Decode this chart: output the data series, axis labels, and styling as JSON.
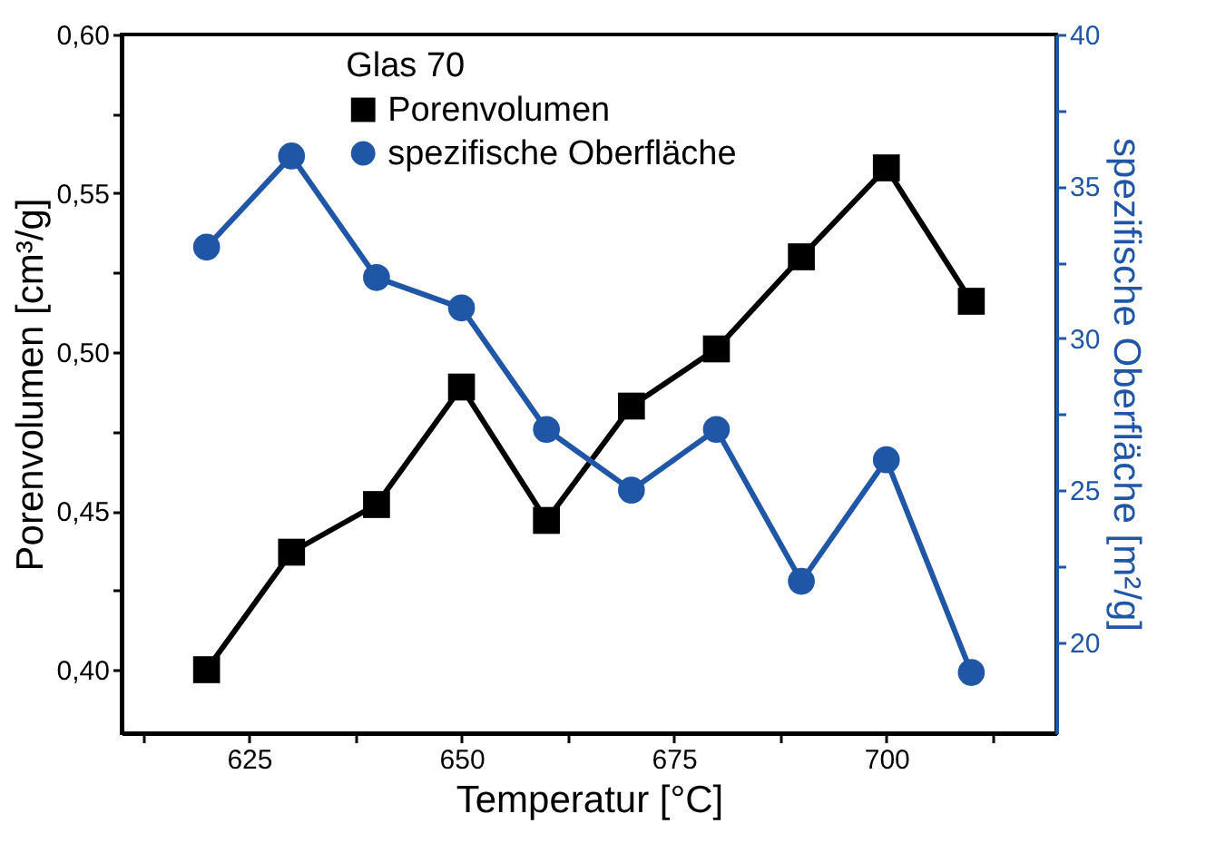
{
  "chart_data": {
    "type": "line",
    "xlabel": "Temperatur [°C]",
    "ylabel": "Porenvolumen [cm³/g]",
    "y2label": "spezifische Oberfläche [m²/g]",
    "legend_title": "Glas 70",
    "legend": "top",
    "x": [
      620,
      630,
      640,
      650,
      660,
      670,
      680,
      690,
      700,
      710
    ],
    "series": [
      {
        "name": "Porenvolumen",
        "color": "#000000",
        "marker": "square",
        "values": [
          0.4,
          0.437,
          0.452,
          0.489,
          0.447,
          0.483,
          0.501,
          0.53,
          0.558,
          0.516
        ]
      },
      {
        "name": "spezifische Oberfläche",
        "color": "#1f56a6",
        "marker": "circle",
        "axis": "y2",
        "values": [
          33,
          36,
          32,
          31,
          27,
          25,
          27,
          22,
          26,
          19
        ]
      }
    ],
    "xlim": [
      610,
      720
    ],
    "xticks": [
      {
        "value": 612.5,
        "label": null
      },
      625,
      {
        "value": 637.5,
        "label": null
      },
      650,
      {
        "value": 662.5,
        "label": null
      },
      675,
      {
        "value": 687.5,
        "label": null
      },
      700,
      {
        "value": 712.5,
        "label": null
      }
    ],
    "ylim": [
      0.38,
      0.6
    ],
    "yticks": [
      {
        "value": 0.4,
        "label": "0,40"
      },
      {
        "value": 0.425,
        "label": null
      },
      {
        "value": 0.45,
        "label": "0,45"
      },
      {
        "value": 0.475,
        "label": null
      },
      {
        "value": 0.5,
        "label": "0,50"
      },
      {
        "value": 0.525,
        "label": null
      },
      {
        "value": 0.55,
        "label": "0,55"
      },
      {
        "value": 0.575,
        "label": null
      },
      {
        "value": 0.6,
        "label": "0,60"
      }
    ],
    "y2lim": [
      17,
      40
    ],
    "y2ticks": [
      20,
      {
        "value": 22.5,
        "label": null
      },
      25,
      {
        "value": 27.5,
        "label": null
      },
      30,
      {
        "value": 32.5,
        "label": null
      },
      35,
      {
        "value": 37.5,
        "label": null
      },
      40
    ],
    "grid": false,
    "line_style": "solid"
  }
}
